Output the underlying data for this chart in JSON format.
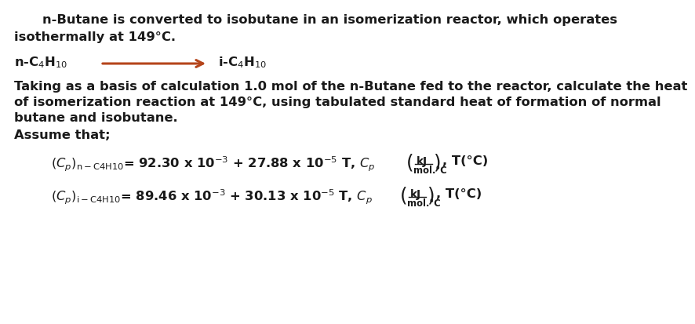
{
  "bg_color": "#ffffff",
  "text_color": "#1a1a1a",
  "arrow_color": "#b5451b",
  "title_line1": "n-Butane is converted to isobutane in an isomerization reactor, which operates",
  "title_line2": "isothermally at 149°C.",
  "reactant": "n-C$_4$H$_{10}$",
  "product": "i-C$_4$H$_{10}$",
  "para1": "Taking as a basis of calculation 1.0 mol of the n-Butane fed to the reactor, calculate the heat",
  "para2": "of isomerization reaction at 149°C, using tabulated standard heat of formation of normal",
  "para3": "butane and isobutane.",
  "assume": "Assume that;",
  "font_size": 11.8,
  "eq_font_size": 11.8
}
